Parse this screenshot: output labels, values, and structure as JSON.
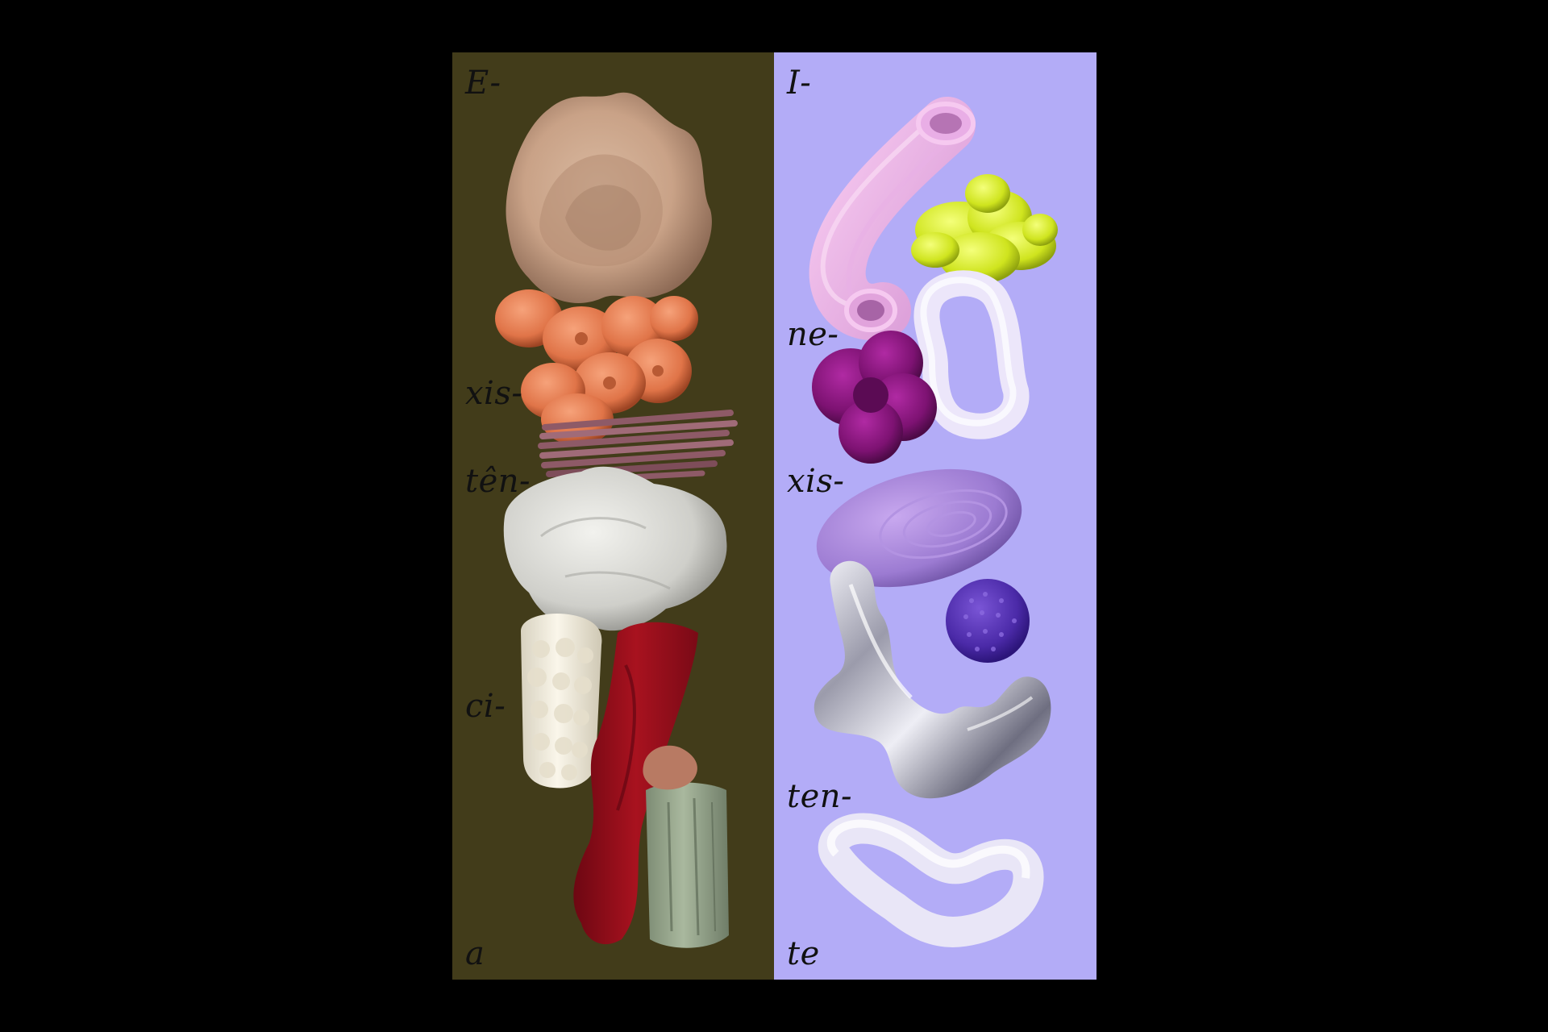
{
  "colors": {
    "page_background": "#000000",
    "left_panel": "#423c1a",
    "right_panel": "#b3acf7",
    "text": "#111111"
  },
  "left_column": {
    "syllables": [
      "E-",
      "xis-",
      "tên-",
      "ci-",
      "a"
    ]
  },
  "right_column": {
    "syllables": [
      "I-",
      "ne-",
      "xis-",
      "ten-",
      "te"
    ]
  }
}
